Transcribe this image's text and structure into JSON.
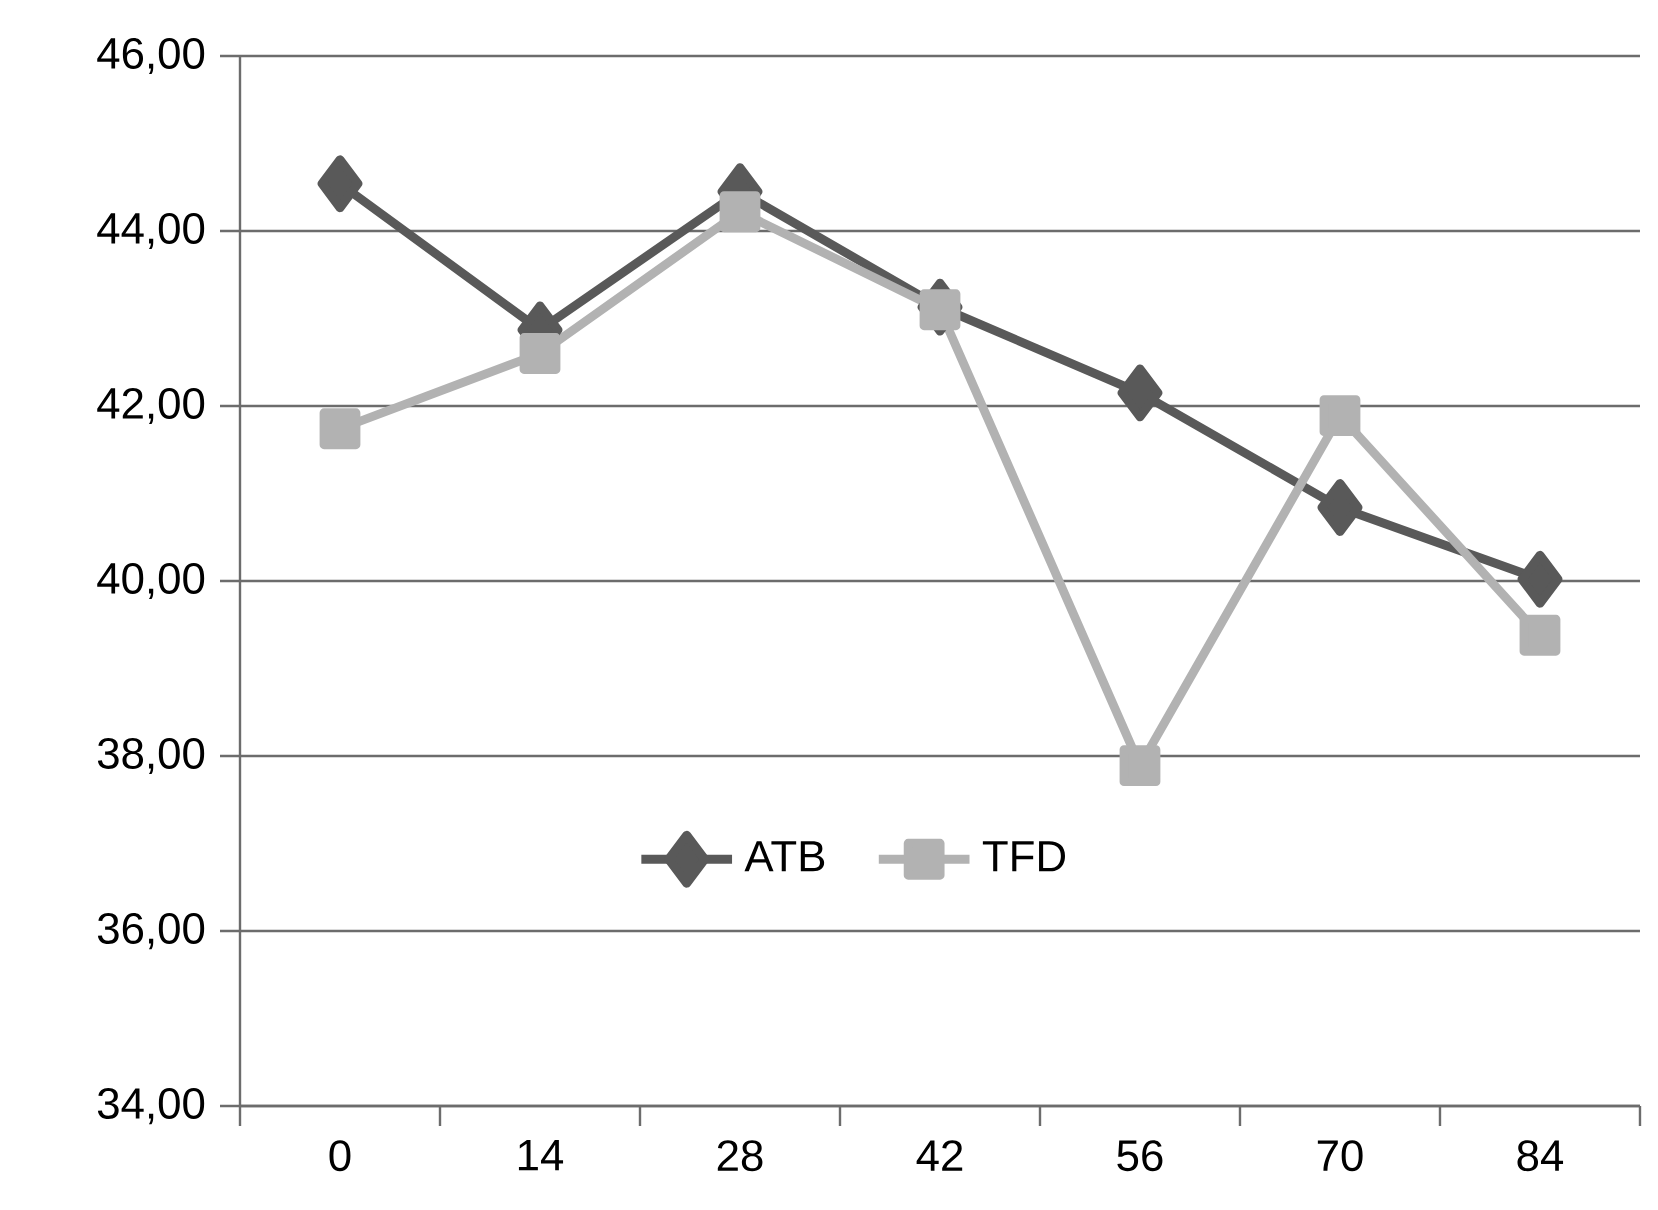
{
  "chart_data": {
    "type": "line",
    "categories": [
      "0",
      "14",
      "28",
      "42",
      "56",
      "70",
      "84"
    ],
    "series": [
      {
        "name": "ATB",
        "color": "#595959",
        "marker": "diamond",
        "values": [
          44.54,
          42.87,
          44.45,
          43.13,
          42.15,
          40.84,
          40.02
        ]
      },
      {
        "name": "TFD",
        "color": "#b2b2b2",
        "marker": "square",
        "values": [
          41.74,
          42.6,
          44.22,
          43.1,
          37.89,
          41.89,
          39.38
        ]
      }
    ],
    "ylim": [
      34,
      46
    ],
    "yticks": [
      {
        "value": 34,
        "label": "34,00"
      },
      {
        "value": 36,
        "label": "36,00"
      },
      {
        "value": 38,
        "label": "38,00"
      },
      {
        "value": 40,
        "label": "40,00"
      },
      {
        "value": 42,
        "label": "42,00"
      },
      {
        "value": 44,
        "label": "44,00"
      },
      {
        "value": 46,
        "label": "46,00"
      }
    ],
    "grid": "y",
    "legend": "bottom",
    "line_style": "solid"
  }
}
